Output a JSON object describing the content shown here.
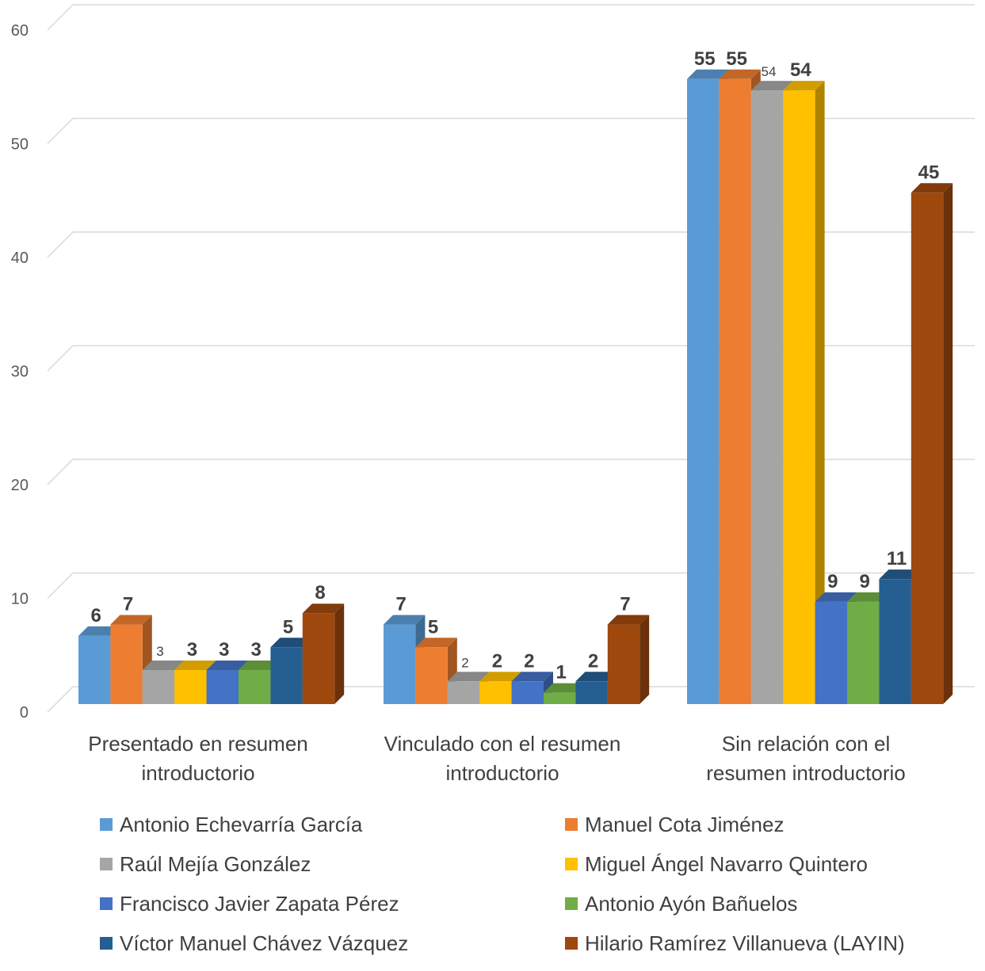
{
  "chart_data": {
    "type": "bar",
    "title": "",
    "xlabel": "",
    "ylabel": "",
    "ylim": [
      0,
      60
    ],
    "yticks": [
      0,
      10,
      20,
      30,
      40,
      50,
      60
    ],
    "grid": true,
    "legend_position": "bottom",
    "categories": [
      "Presentado en resumen introductorio",
      "Vinculado con el resumen introductorio",
      "Sin relación con el resumen introductorio"
    ],
    "category_lines": [
      [
        "Presentado en resumen",
        "introductorio"
      ],
      [
        "Vinculado con el resumen",
        "introductorio"
      ],
      [
        "Sin relación con el",
        "resumen introductorio"
      ]
    ],
    "series": [
      {
        "name": "Antonio Echevarría García",
        "color": "#5B9BD5",
        "values": [
          6,
          7,
          55
        ]
      },
      {
        "name": "Manuel Cota Jiménez",
        "color": "#ED7D31",
        "values": [
          7,
          5,
          55
        ]
      },
      {
        "name": "Raúl Mejía González",
        "color": "#A5A5A5",
        "values": [
          3,
          2,
          54
        ]
      },
      {
        "name": "Miguel Ángel Navarro Quintero",
        "color": "#FFC000",
        "values": [
          3,
          2,
          54
        ]
      },
      {
        "name": "Francisco Javier Zapata Pérez",
        "color": "#4472C4",
        "values": [
          3,
          2,
          9
        ]
      },
      {
        "name": "Antonio Ayón Bañuelos",
        "color": "#70AD47",
        "values": [
          3,
          1,
          9
        ]
      },
      {
        "name": "Víctor Manuel Chávez Vázquez",
        "color": "#255E91",
        "values": [
          5,
          2,
          11
        ]
      },
      {
        "name": "Hilario Ramírez Villanueva (LAYIN)",
        "color": "#9E480E",
        "values": [
          8,
          7,
          45
        ]
      }
    ],
    "label_style": [
      [
        "bold",
        "bold",
        "bold"
      ],
      [
        "bold",
        "bold",
        "bold"
      ],
      [
        "light",
        "light",
        "light"
      ],
      [
        "bold",
        "bold",
        "bold"
      ],
      [
        "bold",
        "bold",
        "bold"
      ],
      [
        "bold",
        "bold",
        "bold"
      ],
      [
        "bold",
        "bold",
        "bold"
      ],
      [
        "bold",
        "bold",
        "bold"
      ]
    ]
  }
}
